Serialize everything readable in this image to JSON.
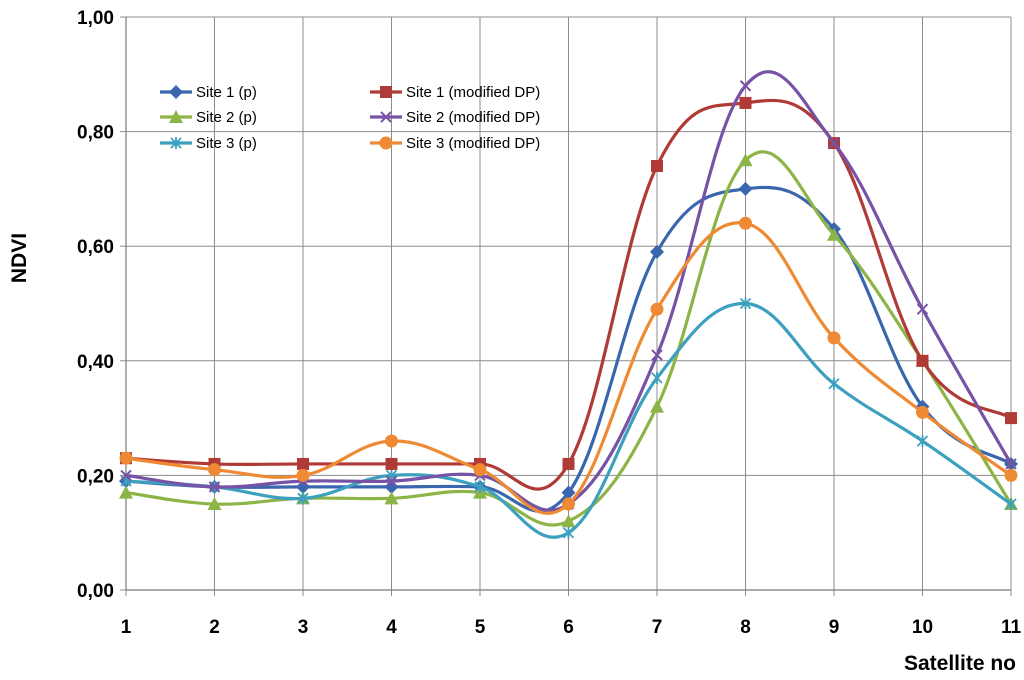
{
  "chart_data": {
    "type": "line",
    "title": "",
    "xlabel": "Satellite no",
    "ylabel": "NDVI",
    "x": [
      1,
      2,
      3,
      4,
      5,
      6,
      7,
      8,
      9,
      10,
      11
    ],
    "x_tick_labels": [
      "1",
      "2",
      "3",
      "4",
      "5",
      "6",
      "7",
      "8",
      "9",
      "10",
      "11"
    ],
    "ylim": [
      0,
      1
    ],
    "y_ticks": [
      0,
      0.2,
      0.4,
      0.6,
      0.8,
      1.0
    ],
    "y_tick_labels": [
      "0,00",
      "0,20",
      "0,40",
      "0,60",
      "0,80",
      "1,00"
    ],
    "grid": true,
    "legend_position": "top-left",
    "series": [
      {
        "name": "Site 1 (p)",
        "color": "#3A66AE",
        "marker": "diamond",
        "values": [
          0.19,
          0.18,
          0.18,
          0.18,
          0.18,
          0.17,
          0.59,
          0.7,
          0.63,
          0.32,
          0.22
        ]
      },
      {
        "name": "Site 2 (p)",
        "color": "#8DB446",
        "marker": "triangle",
        "values": [
          0.17,
          0.15,
          0.16,
          0.16,
          0.17,
          0.12,
          0.32,
          0.75,
          0.62,
          0.4,
          0.15
        ]
      },
      {
        "name": "Site 3 (p)",
        "color": "#3CA0BE",
        "marker": "star",
        "values": [
          0.19,
          0.18,
          0.16,
          0.2,
          0.18,
          0.1,
          0.37,
          0.5,
          0.36,
          0.26,
          0.15
        ]
      },
      {
        "name": "Site 1 (modified DP)",
        "color": "#B03A35",
        "marker": "square",
        "values": [
          0.23,
          0.22,
          0.22,
          0.22,
          0.22,
          0.22,
          0.74,
          0.85,
          0.78,
          0.4,
          0.3
        ]
      },
      {
        "name": "Site 2 (modified DP)",
        "color": "#7753A5",
        "marker": "x",
        "values": [
          0.2,
          0.18,
          0.19,
          0.19,
          0.2,
          0.15,
          0.41,
          0.88,
          0.78,
          0.49,
          0.22
        ]
      },
      {
        "name": "Site 3 (modified DP)",
        "color": "#EE8A33",
        "marker": "circle",
        "values": [
          0.23,
          0.21,
          0.2,
          0.26,
          0.21,
          0.15,
          0.49,
          0.64,
          0.44,
          0.31,
          0.2
        ]
      }
    ]
  }
}
